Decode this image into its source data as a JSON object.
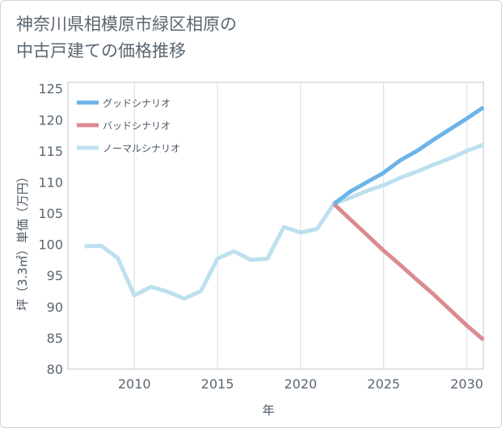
{
  "chart_data": {
    "type": "line",
    "title": "神奈川県相模原市緑区相原の\n中古戸建ての価格推移",
    "xlabel": "年",
    "ylabel": "坪（3.3㎡）単価（万円）",
    "xlim": [
      2006,
      2031
    ],
    "ylim": [
      80,
      126
    ],
    "xticks": [
      2010,
      2015,
      2020,
      2025,
      2030
    ],
    "xtick_labels": [
      "2010",
      "2015",
      "2020",
      "2025",
      "2030"
    ],
    "yticks": [
      80,
      85,
      90,
      95,
      100,
      105,
      110,
      115,
      120,
      125
    ],
    "ytick_labels": [
      "80",
      "85",
      "90",
      "95",
      "100",
      "105",
      "110",
      "115",
      "120",
      "125"
    ],
    "legend": "top-left",
    "grid": "vertical",
    "series": [
      {
        "name": "グッドシナリオ",
        "color": "#6cb4e8",
        "x": [
          2022,
          2023,
          2024,
          2025,
          2026,
          2027,
          2028,
          2029,
          2030,
          2031
        ],
        "values": [
          106.5,
          108.5,
          110.0,
          111.5,
          113.5,
          115.0,
          116.8,
          118.5,
          120.2,
          122.0
        ]
      },
      {
        "name": "バッドシナリオ",
        "color": "#dc8a92",
        "x": [
          2022,
          2023,
          2024,
          2025,
          2026,
          2027,
          2028,
          2029,
          2030,
          2031
        ],
        "values": [
          106.5,
          104.0,
          101.5,
          99.0,
          96.7,
          94.3,
          92.0,
          89.5,
          87.0,
          84.7
        ]
      },
      {
        "name": "ノーマルシナリオ",
        "color": "#bde0ee",
        "x": [
          2007,
          2008,
          2009,
          2010,
          2011,
          2012,
          2013,
          2014,
          2015,
          2016,
          2017,
          2018,
          2019,
          2020,
          2021,
          2022,
          2023,
          2024,
          2025,
          2026,
          2027,
          2028,
          2029,
          2030,
          2031
        ],
        "values": [
          99.7,
          99.8,
          97.8,
          91.8,
          93.2,
          92.4,
          91.3,
          92.5,
          97.7,
          98.9,
          97.5,
          97.7,
          102.8,
          101.9,
          102.5,
          106.5,
          107.5,
          108.6,
          109.5,
          110.7,
          111.7,
          112.8,
          113.8,
          115.0,
          116.0
        ]
      }
    ]
  }
}
